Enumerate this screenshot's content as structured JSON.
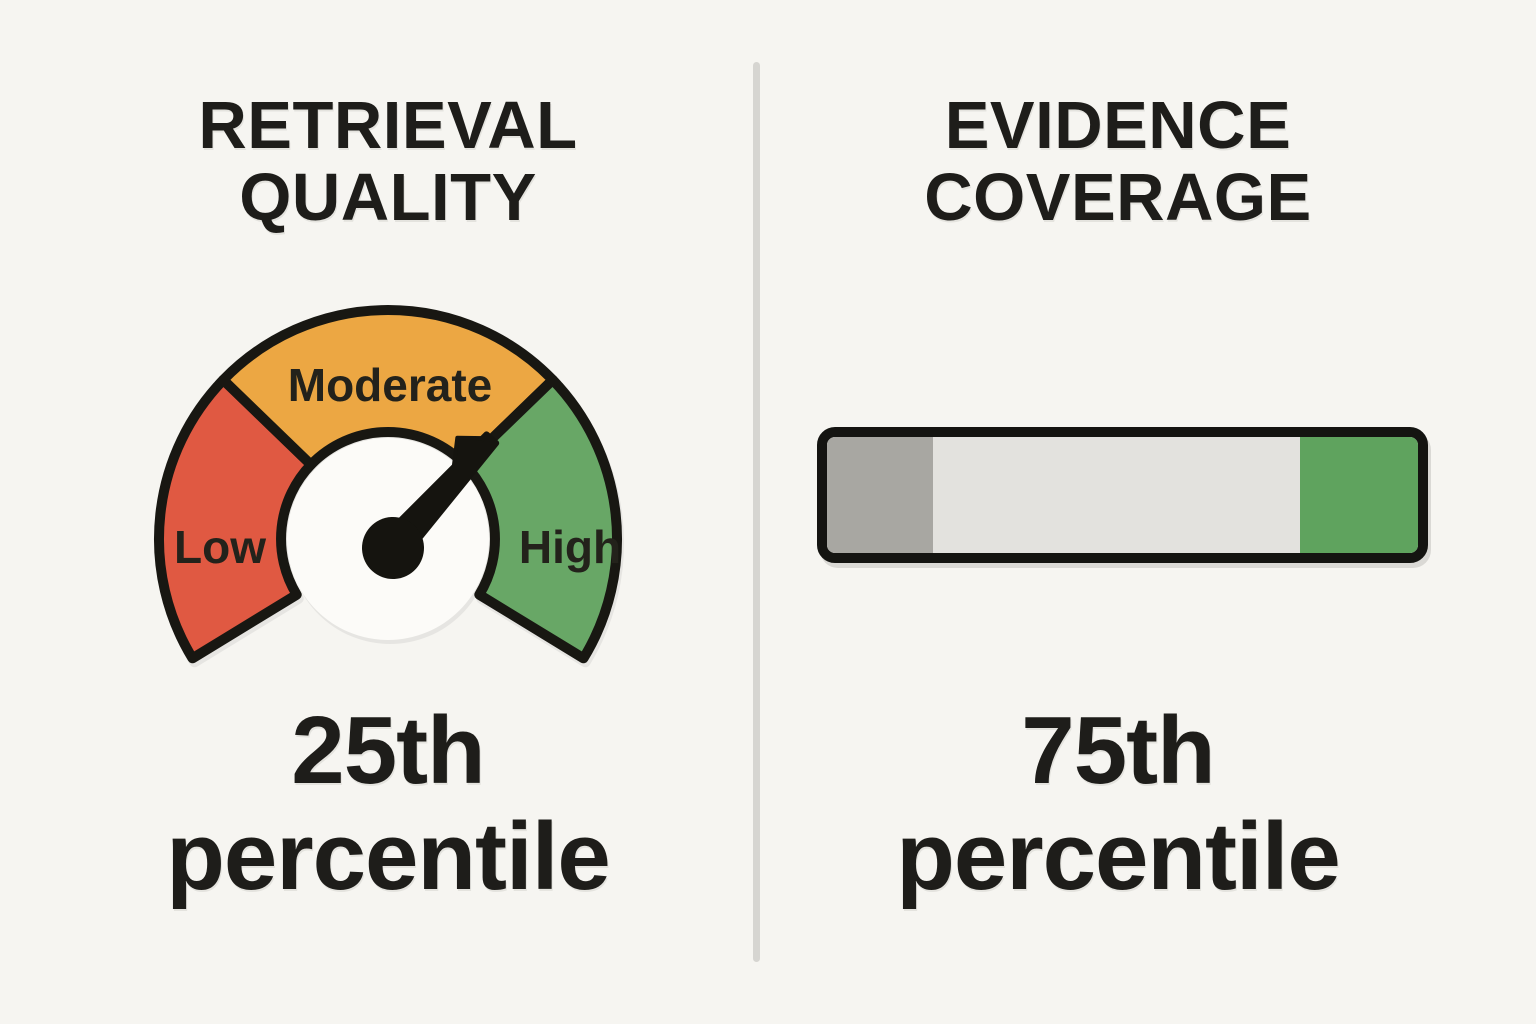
{
  "colors": {
    "background": "#f6f5f1",
    "text": "#1e1d1a",
    "divider": "#d6d5d1"
  },
  "left_panel": {
    "title_line1": "RETRIEVAL",
    "title_line2": "QUALITY",
    "gauge": {
      "labels": {
        "low": "Low",
        "moderate": "Moderate",
        "high": "High"
      },
      "colors": {
        "low": "#e05942",
        "moderate": "#eca743",
        "high": "#68a766",
        "outline": "#181712",
        "needle": "#15140f",
        "inner": "#fcfbf8"
      },
      "needle_angle_deg": 48
    },
    "value_line1": "25th",
    "value_line2": "percentile"
  },
  "right_panel": {
    "title_line1": "EVIDENCE",
    "title_line2": "COVERAGE",
    "coverage_bar": {
      "border_color": "#141411",
      "segments": [
        {
          "name": "dark-gray",
          "color": "#a8a7a2",
          "fraction": 0.18
        },
        {
          "name": "light-gray",
          "color": "#e3e2de",
          "fraction": 0.62
        },
        {
          "name": "green",
          "color": "#5fa35e",
          "fraction": 0.2
        }
      ]
    },
    "value_line1": "75th",
    "value_line2": "percentile"
  },
  "chart_data": [
    {
      "type": "pie",
      "variant": "gauge",
      "title": "RETRIEVAL QUALITY",
      "categories": [
        "Low",
        "Moderate",
        "High"
      ],
      "segment_sweep_deg": [
        76,
        91,
        76
      ],
      "segment_colors": [
        "#e05942",
        "#eca743",
        "#68a766"
      ],
      "needle_angle_deg": 48,
      "needle_position": "at the Moderate/High boundary (~67% of arc)",
      "value_label": "25th percentile",
      "legend_position": "none"
    },
    {
      "type": "bar",
      "variant": "segmented-progress",
      "title": "EVIDENCE COVERAGE",
      "categories": [
        "dark-gray",
        "light-gray",
        "green"
      ],
      "values": [
        0.18,
        0.62,
        0.2
      ],
      "segment_colors": [
        "#a8a7a2",
        "#e3e2de",
        "#5fa35e"
      ],
      "value_label": "75th percentile",
      "legend_position": "none"
    }
  ]
}
